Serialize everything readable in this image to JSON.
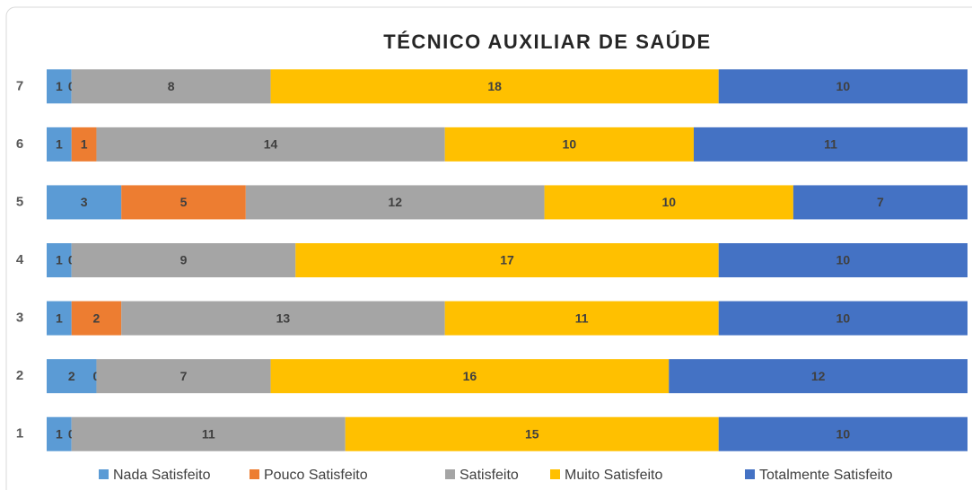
{
  "chart_data": {
    "type": "stacked-barh",
    "title": "TÉCNICO AUXILIAR DE SAÚDE",
    "categories": [
      "1",
      "2",
      "3",
      "4",
      "5",
      "6",
      "7"
    ],
    "series": [
      {
        "name": "Nada Satisfeito",
        "color": "#5b9bd5",
        "values": [
          1,
          2,
          1,
          1,
          3,
          1,
          1
        ]
      },
      {
        "name": "Pouco Satisfeito",
        "color": "#ed7d31",
        "values": [
          0,
          0,
          2,
          0,
          5,
          1,
          0
        ]
      },
      {
        "name": "Satisfeito",
        "color": "#a5a5a5",
        "values": [
          11,
          7,
          13,
          9,
          12,
          14,
          8
        ]
      },
      {
        "name": "Muito Satisfeito",
        "color": "#ffc000",
        "values": [
          15,
          16,
          11,
          17,
          10,
          10,
          18
        ]
      },
      {
        "name": "Totalmente Satisfeito",
        "color": "#4472c4",
        "values": [
          10,
          12,
          10,
          10,
          7,
          11,
          10
        ]
      }
    ],
    "xlim": [
      0,
      37
    ],
    "legend": "bottom"
  }
}
